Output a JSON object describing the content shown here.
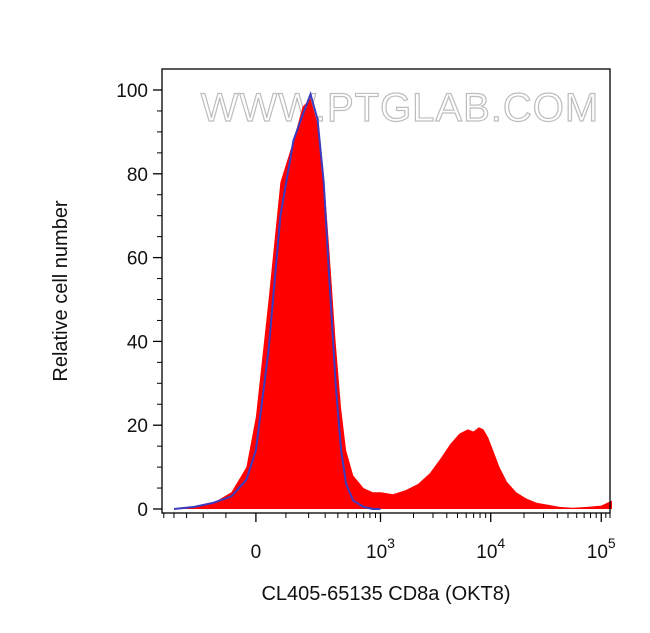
{
  "watermark": "WWW.PTGLAB.COM",
  "chart_data": {
    "type": "area",
    "title": "",
    "xlabel": "CL405-65135 CD8a (OKT8)",
    "ylabel": "Relative cell number",
    "x_scale": "biexponential",
    "x_ticks": [
      {
        "value": 0,
        "base": "0",
        "exp": ""
      },
      {
        "value": 1000,
        "base": "10",
        "exp": "3"
      },
      {
        "value": 10000,
        "base": "10",
        "exp": "4"
      },
      {
        "value": 100000,
        "base": "10",
        "exp": "5"
      }
    ],
    "y_ticks": [
      0,
      20,
      40,
      60,
      80,
      100
    ],
    "ylim": [
      0,
      100
    ],
    "grid": false,
    "colors": {
      "stained": "#ff0000",
      "control": "#3b3bbf"
    },
    "series": [
      {
        "style": "filled",
        "x": [
          -400,
          -250,
          -150,
          -80,
          -30,
          0,
          40,
          80,
          130,
          170,
          210,
          250,
          290,
          330,
          380,
          430,
          480,
          560,
          700,
          850,
          1000,
          1300,
          1700,
          2200,
          2800,
          3500,
          4300,
          5200,
          6200,
          7000,
          7800,
          8600,
          9500,
          10500,
          12000,
          14000,
          17000,
          21000,
          26000,
          33000,
          42000,
          55000,
          75000,
          100000,
          125000
        ],
        "y": [
          0,
          0.5,
          1.5,
          4,
          10,
          22,
          50,
          78,
          88,
          96,
          98,
          92,
          80,
          62,
          40,
          24,
          14,
          8,
          5,
          4,
          4,
          3.5,
          4.5,
          6,
          8.5,
          12,
          15.5,
          18,
          19,
          18.5,
          19.5,
          19,
          17,
          14,
          10,
          6.5,
          4,
          2.5,
          1.5,
          1,
          0.5,
          0.3,
          0.5,
          0.8,
          2
        ]
      },
      {
        "style": "line",
        "x": [
          -400,
          -250,
          -150,
          -80,
          -30,
          0,
          40,
          80,
          130,
          170,
          210,
          250,
          290,
          330,
          380,
          430,
          480,
          560,
          700,
          850,
          1000
        ],
        "y": [
          0,
          0.5,
          1.5,
          3,
          7,
          14,
          38,
          70,
          88,
          94,
          99,
          93,
          78,
          55,
          30,
          14,
          6,
          2,
          0.5,
          0,
          0
        ]
      }
    ]
  }
}
